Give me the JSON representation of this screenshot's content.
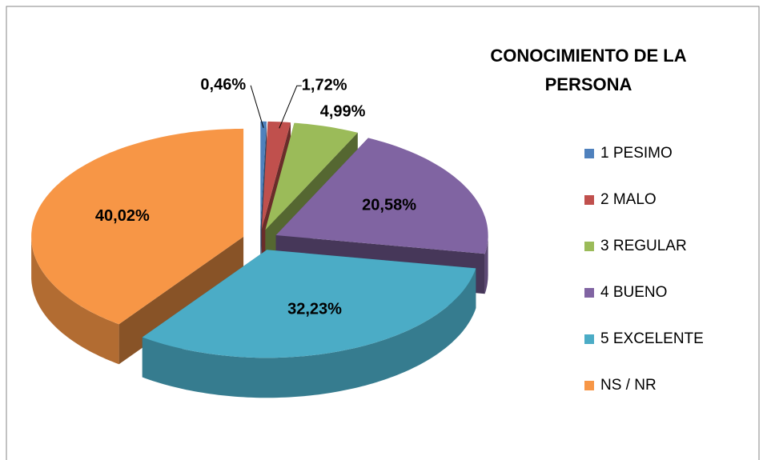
{
  "chart_data": {
    "type": "pie",
    "title": "CONOCIMIENTO DE LA PERSONA",
    "categories": [
      "1 PESIMO",
      "2 MALO",
      "3 REGULAR",
      "4 BUENO",
      "5 EXCELENTE",
      "NS / NR"
    ],
    "values": [
      0.46,
      1.72,
      4.99,
      20.58,
      32.23,
      40.02
    ],
    "value_labels": [
      "0,46%",
      "1,72%",
      "4,99%",
      "20,58%",
      "32,23%",
      "40,02%"
    ],
    "colors": [
      "#4f81bd",
      "#c0504d",
      "#9bbb59",
      "#8064a2",
      "#4bacc6",
      "#f79646"
    ],
    "legend": "right"
  }
}
